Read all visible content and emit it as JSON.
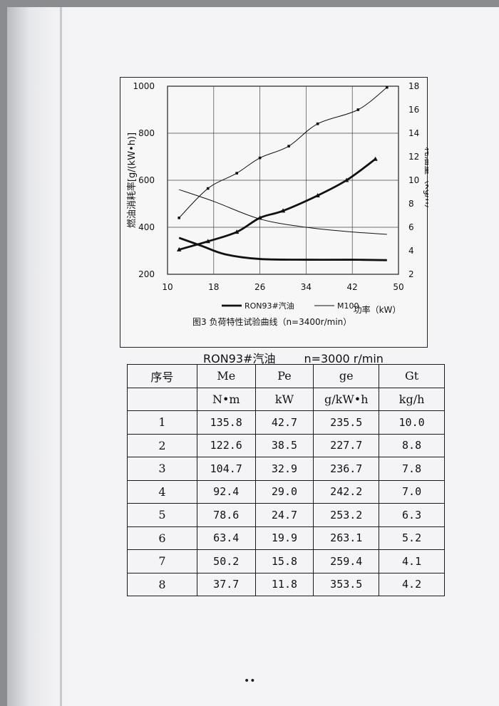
{
  "figure": {
    "caption": "图3  负荷特性试验曲线（n=3400r/min）",
    "chart_data": {
      "type": "line",
      "x_label": "功率（kW）",
      "x_ticks": [
        "10",
        "18",
        "26",
        "34",
        "42",
        "50"
      ],
      "xlim": [
        10,
        50
      ],
      "y_left_label": "燃油消耗率[g/(kW•h)]",
      "y_left_ticks": [
        "200",
        "400",
        "600",
        "800",
        "1000"
      ],
      "y_left_lim": [
        200,
        1000
      ],
      "y_right_label": "耗油量（kg/h）",
      "y_right_ticks": [
        "2",
        "4",
        "6",
        "8",
        "10",
        "12",
        "14",
        "16",
        "18"
      ],
      "y_right_lim": [
        2,
        18
      ],
      "legend": [
        {
          "label": "RON93#汽油",
          "style": "thick"
        },
        {
          "label": "M100",
          "style": "thin"
        }
      ],
      "series": [
        {
          "name": "RON93#汽油",
          "axis": "left",
          "style": "thick",
          "x": [
            12,
            16,
            20,
            26,
            34,
            42,
            48
          ],
          "y": [
            355,
            320,
            285,
            265,
            262,
            262,
            260
          ]
        },
        {
          "name": "RON93#汽油",
          "axis": "right",
          "style": "thick",
          "marker": "triangle",
          "x": [
            12,
            17,
            22,
            26,
            30,
            36,
            41,
            46
          ],
          "y": [
            4.1,
            4.8,
            5.6,
            6.8,
            7.4,
            8.7,
            10.0,
            11.8
          ]
        },
        {
          "name": "M100",
          "axis": "left",
          "style": "thin",
          "x": [
            12,
            18,
            26,
            34,
            42,
            48
          ],
          "y": [
            560,
            510,
            435,
            400,
            380,
            370
          ]
        },
        {
          "name": "M100",
          "axis": "right",
          "style": "thin",
          "marker": "square",
          "x": [
            12,
            17,
            22,
            26,
            31,
            36,
            43,
            48
          ],
          "y": [
            6.8,
            9.3,
            10.6,
            11.9,
            12.9,
            14.8,
            16.0,
            17.9
          ]
        }
      ]
    }
  },
  "table": {
    "title_fuel": "RON93#汽油",
    "title_speed": "n=3000 r/min",
    "headers": [
      "序号",
      "Me",
      "Pe",
      "ge",
      "Gt"
    ],
    "units": [
      "",
      "N•m",
      "kW",
      "g/kW•h",
      "kg/h"
    ],
    "rows": [
      [
        "1",
        "135.8",
        "42.7",
        "235.5",
        "10.0"
      ],
      [
        "2",
        "122.6",
        "38.5",
        "227.7",
        "8.8"
      ],
      [
        "3",
        "104.7",
        "32.9",
        "236.7",
        "7.8"
      ],
      [
        "4",
        "92.4",
        "29.0",
        "242.2",
        "7.0"
      ],
      [
        "5",
        "78.6",
        "24.7",
        "253.2",
        "6.3"
      ],
      [
        "6",
        "63.4",
        "19.9",
        "263.1",
        "5.2"
      ],
      [
        "7",
        "50.2",
        "15.8",
        "259.4",
        "4.1"
      ],
      [
        "8",
        "37.7",
        "11.8",
        "353.5",
        "4.2"
      ]
    ]
  },
  "footer": {
    "page_mark": "••"
  }
}
